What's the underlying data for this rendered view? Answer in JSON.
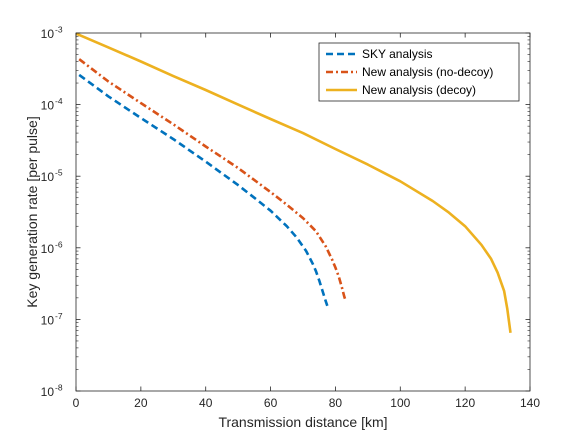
{
  "chart_data": {
    "type": "line",
    "title": "",
    "xlabel": "Transmission distance [km]",
    "ylabel": "Key generation rate [per pulse]",
    "xlim": [
      0,
      140
    ],
    "ylim": [
      1e-08,
      0.001
    ],
    "yscale": "log",
    "grid": false,
    "legend_position": "top-right",
    "x_ticks": [
      {
        "value": 0,
        "label": "0"
      },
      {
        "value": 20,
        "label": "20"
      },
      {
        "value": 40,
        "label": "40"
      },
      {
        "value": 60,
        "label": "60"
      },
      {
        "value": 80,
        "label": "80"
      },
      {
        "value": 100,
        "label": "100"
      },
      {
        "value": 120,
        "label": "120"
      },
      {
        "value": 140,
        "label": "140"
      }
    ],
    "y_ticks": [
      {
        "value": 1e-08,
        "base": "10",
        "exp": "-8"
      },
      {
        "value": 1e-07,
        "base": "10",
        "exp": "-7"
      },
      {
        "value": 1e-06,
        "base": "10",
        "exp": "-6"
      },
      {
        "value": 1e-05,
        "base": "10",
        "exp": "-5"
      },
      {
        "value": 0.0001,
        "base": "10",
        "exp": "-4"
      },
      {
        "value": 0.001,
        "base": "10",
        "exp": "-3"
      }
    ],
    "series": [
      {
        "name": "SKY analysis",
        "color": "#0072BD",
        "style": "dashed",
        "x": [
          1,
          10,
          20,
          30,
          40,
          50,
          55,
          60,
          65,
          68,
          71,
          73,
          74,
          75,
          76,
          77,
          77.5
        ],
        "y": [
          0.00026,
          0.00013,
          6.5e-05,
          3.3e-05,
          1.6e-05,
          7.5e-06,
          5e-06,
          3.3e-06,
          2e-06,
          1.4e-06,
          9e-07,
          6e-07,
          4.7e-07,
          3.5e-07,
          2.5e-07,
          1.8e-07,
          1.55e-07
        ]
      },
      {
        "name": "New analysis (no-decoy)",
        "color": "#D95319",
        "style": "dash-dot",
        "x": [
          1,
          10,
          20,
          30,
          40,
          50,
          60,
          65,
          70,
          74,
          77,
          79,
          80,
          81,
          82,
          82.7,
          83
        ],
        "y": [
          0.00043,
          0.00021,
          0.000105,
          5.3e-05,
          2.6e-05,
          1.3e-05,
          6e-06,
          4e-06,
          2.6e-06,
          1.7e-06,
          1.05e-06,
          6.8e-07,
          5.3e-07,
          4e-07,
          2.8e-07,
          2.1e-07,
          1.9e-07
        ]
      },
      {
        "name": "New analysis (decoy)",
        "color": "#EDB120",
        "style": "solid",
        "x": [
          0,
          10,
          20,
          30,
          40,
          50,
          60,
          70,
          80,
          90,
          100,
          110,
          115,
          120,
          125,
          128,
          130,
          132,
          133,
          134
        ],
        "y": [
          0.00098,
          0.00063,
          0.0004,
          0.00025,
          0.00016,
          0.0001,
          6.3e-05,
          4e-05,
          2.4e-05,
          1.45e-05,
          8.5e-06,
          4.5e-06,
          3.1e-06,
          2e-06,
          1.1e-06,
          7e-07,
          4.5e-07,
          2.5e-07,
          1.4e-07,
          6.5e-08
        ]
      }
    ]
  }
}
